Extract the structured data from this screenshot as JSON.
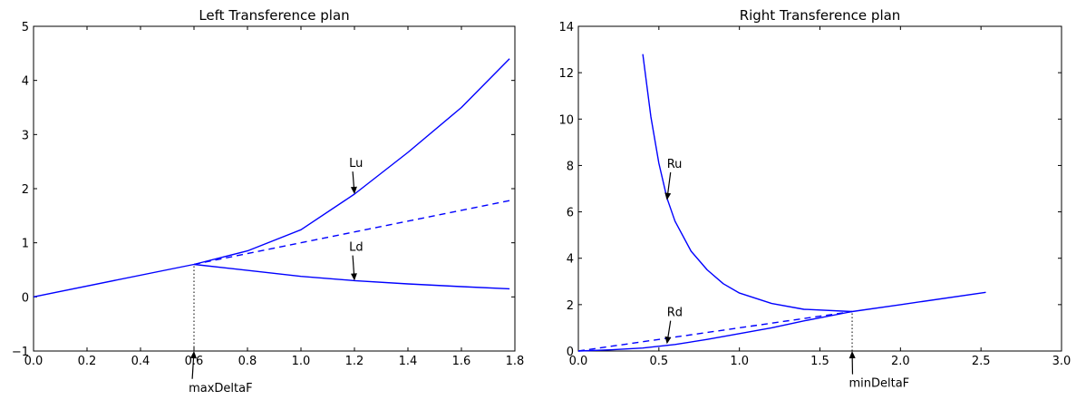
{
  "chart_data": [
    {
      "type": "line",
      "title": "Left Transference plan",
      "xlabel": "",
      "ylabel": "",
      "xlim": [
        0.0,
        1.8
      ],
      "ylim": [
        -1,
        5
      ],
      "xticks": [
        "0.0",
        "0.2",
        "0.4",
        "0.6",
        "0.8",
        "1.0",
        "1.2",
        "1.4",
        "1.6",
        "1.8"
      ],
      "yticks": [
        "−1",
        "0",
        "1",
        "2",
        "3",
        "4",
        "5"
      ],
      "color": "#0000ff",
      "series": [
        {
          "style": "solid",
          "points": [
            [
              0.0,
              0.0
            ],
            [
              0.6,
              0.6
            ],
            [
              0.8,
              0.85
            ],
            [
              1.0,
              1.24
            ],
            [
              1.2,
              1.9
            ],
            [
              1.4,
              2.67
            ],
            [
              1.6,
              3.5
            ],
            [
              1.78,
              4.4
            ]
          ]
        },
        {
          "style": "dashed",
          "points": [
            [
              0.6,
              0.6
            ],
            [
              1.78,
              1.78
            ]
          ]
        },
        {
          "style": "solid",
          "points": [
            [
              0.6,
              0.6
            ],
            [
              0.8,
              0.49
            ],
            [
              1.0,
              0.38
            ],
            [
              1.2,
              0.3
            ],
            [
              1.4,
              0.24
            ],
            [
              1.6,
              0.19
            ],
            [
              1.78,
              0.15
            ]
          ]
        }
      ],
      "vline": {
        "x": 0.6,
        "y_from": -1,
        "y_to": 0.6
      },
      "annotations": [
        {
          "text": "Lu",
          "xy": [
            1.2,
            1.9
          ],
          "xytext": [
            1.18,
            2.4
          ]
        },
        {
          "text": "Ld",
          "xy": [
            1.2,
            0.3
          ],
          "xytext": [
            1.18,
            0.85
          ]
        },
        {
          "text": "maxDeltaF",
          "xy": [
            0.6,
            -1.0
          ],
          "xytext": [
            0.58,
            -1.75
          ]
        }
      ]
    },
    {
      "type": "line",
      "title": "Right Transference plan",
      "xlabel": "",
      "ylabel": "",
      "xlim": [
        0.0,
        3.0
      ],
      "ylim": [
        0,
        14
      ],
      "xticks": [
        "0.0",
        "0.5",
        "1.0",
        "1.5",
        "2.0",
        "2.5",
        "3.0"
      ],
      "yticks": [
        "0",
        "2",
        "4",
        "6",
        "8",
        "10",
        "12",
        "14"
      ],
      "color": "#0000ff",
      "series": [
        {
          "style": "solid",
          "points": [
            [
              0.4,
              12.8
            ],
            [
              0.45,
              10.1
            ],
            [
              0.5,
              8.1
            ],
            [
              0.55,
              6.6
            ],
            [
              0.6,
              5.6
            ],
            [
              0.7,
              4.3
            ],
            [
              0.8,
              3.5
            ],
            [
              0.9,
              2.9
            ],
            [
              1.0,
              2.5
            ],
            [
              1.2,
              2.05
            ],
            [
              1.4,
              1.8
            ],
            [
              1.7,
              1.7
            ]
          ]
        },
        {
          "style": "solid",
          "points": [
            [
              0.0,
              0.0
            ],
            [
              0.2,
              0.05
            ],
            [
              0.4,
              0.13
            ],
            [
              0.6,
              0.28
            ],
            [
              0.8,
              0.5
            ],
            [
              1.0,
              0.75
            ],
            [
              1.2,
              1.0
            ],
            [
              1.4,
              1.3
            ],
            [
              1.7,
              1.7
            ],
            [
              2.0,
              2.0
            ],
            [
              2.53,
              2.53
            ]
          ]
        },
        {
          "style": "dashed",
          "points": [
            [
              0.0,
              0.0
            ],
            [
              1.7,
              1.7
            ]
          ]
        }
      ],
      "vline": {
        "x": 1.7,
        "y_from": 0,
        "y_to": 1.7
      },
      "annotations": [
        {
          "text": "Ru",
          "xy": [
            0.55,
            6.5
          ],
          "xytext": [
            0.55,
            7.9
          ]
        },
        {
          "text": "Rd",
          "xy": [
            0.55,
            0.3
          ],
          "xytext": [
            0.55,
            1.5
          ]
        },
        {
          "text": "minDeltaF",
          "xy": [
            1.7,
            0.0
          ],
          "xytext": [
            1.68,
            -1.55
          ]
        }
      ]
    }
  ]
}
